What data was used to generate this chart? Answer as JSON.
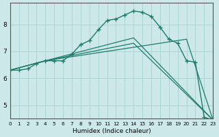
{
  "xlabel": "Humidex (Indice chaleur)",
  "bg_color": "#cce8e8",
  "grid_color": "#aad4d4",
  "line_color": "#1e7a6a",
  "xlim": [
    0,
    23
  ],
  "ylim": [
    4.5,
    8.8
  ],
  "yticks": [
    5,
    6,
    7,
    8
  ],
  "xticks": [
    0,
    1,
    2,
    3,
    4,
    5,
    6,
    7,
    8,
    9,
    10,
    11,
    12,
    13,
    14,
    15,
    16,
    17,
    18,
    19,
    20,
    21,
    22,
    23
  ],
  "series_main": {
    "x": [
      0,
      1,
      2,
      3,
      4,
      5,
      6,
      7,
      8,
      9,
      10,
      11,
      12,
      13,
      14,
      15,
      16,
      17,
      18,
      19,
      20,
      21,
      22,
      23
    ],
    "y": [
      6.3,
      6.3,
      6.35,
      6.55,
      6.65,
      6.65,
      6.65,
      6.9,
      7.25,
      7.4,
      7.8,
      8.15,
      8.2,
      8.35,
      8.5,
      8.45,
      8.3,
      7.9,
      7.45,
      7.3,
      6.65,
      6.6,
      4.55,
      4.45
    ]
  },
  "lines": [
    {
      "x": [
        0,
        4,
        14,
        23
      ],
      "y": [
        6.3,
        6.65,
        7.3,
        4.45
      ]
    },
    {
      "x": [
        0,
        4,
        14,
        23
      ],
      "y": [
        6.3,
        6.65,
        7.5,
        4.45
      ]
    },
    {
      "x": [
        0,
        4,
        20,
        23
      ],
      "y": [
        6.3,
        6.65,
        7.45,
        4.45
      ]
    }
  ]
}
